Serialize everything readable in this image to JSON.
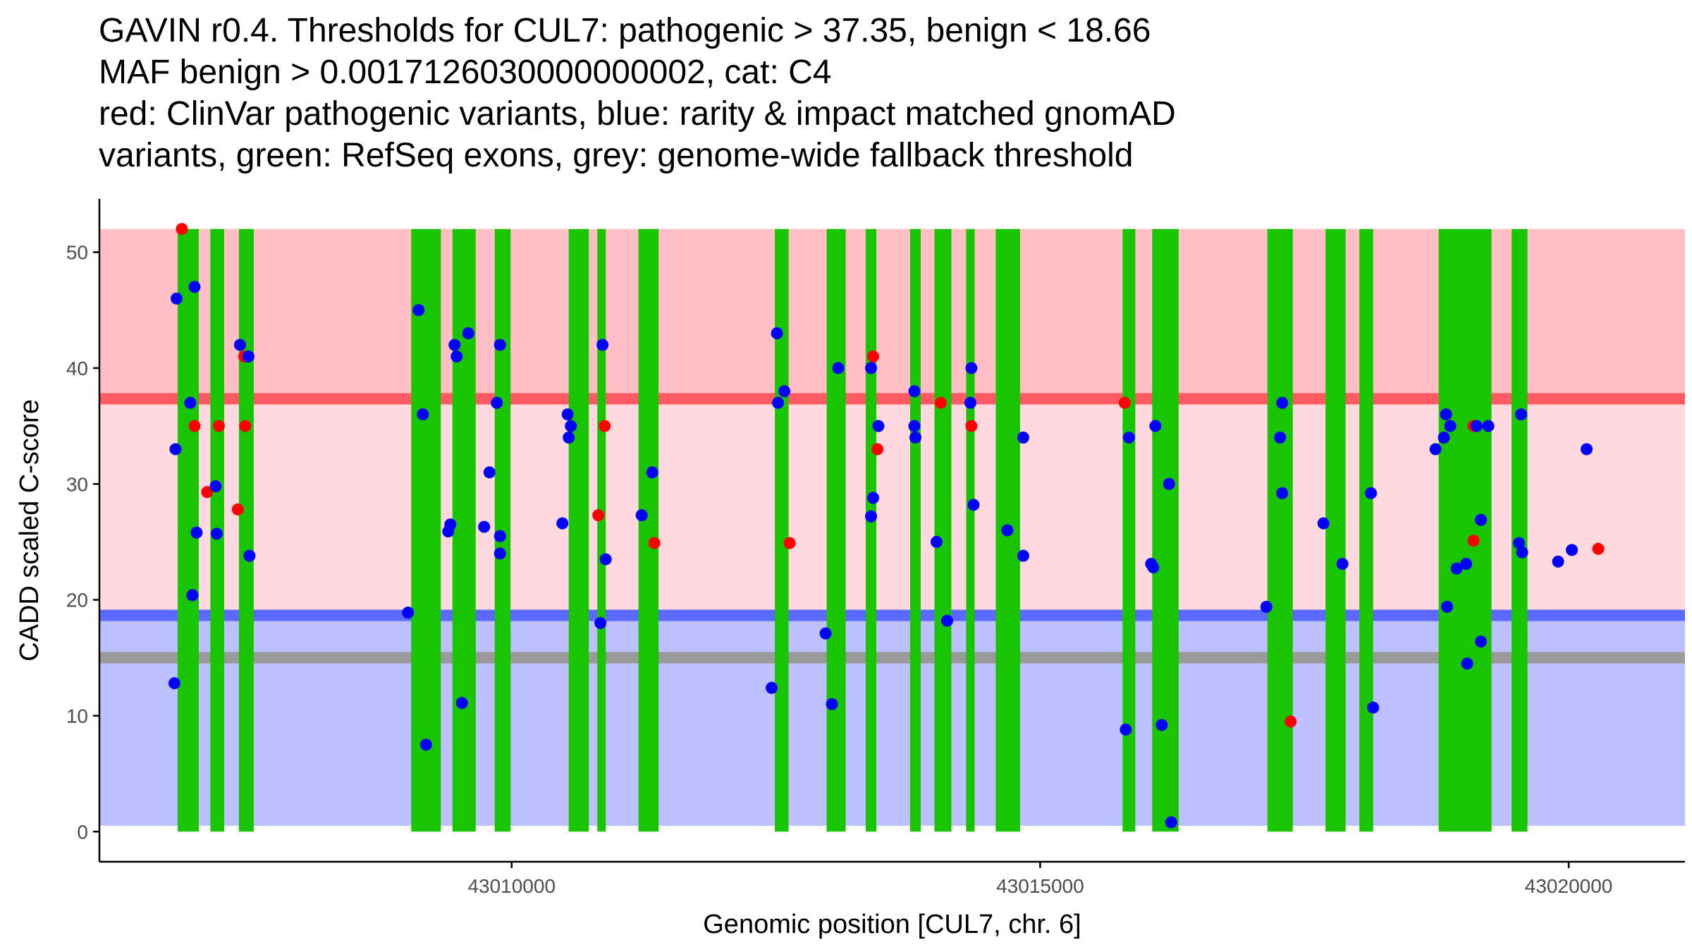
{
  "title_lines": [
    "GAVIN r0.4. Thresholds for CUL7: pathogenic > 37.35, benign < 18.66",
    "MAF benign > 0.0017126030000000002, cat: C4",
    "red: ClinVar pathogenic variants, blue: rarity & impact matched gnomAD",
    "variants, green: RefSeq exons, grey: genome-wide fallback threshold"
  ],
  "chart_data": {
    "type": "scatter",
    "xlabel": "Genomic position [CUL7, chr. 6]",
    "ylabel": "CADD scaled C-score",
    "xlim": [
      43006100,
      43021100
    ],
    "ylim": [
      -2.6,
      54.6
    ],
    "x_ticks": [
      43010000,
      43015000,
      43020000
    ],
    "x_tick_labels": [
      "43010000",
      "43015000",
      "43020000"
    ],
    "y_ticks": [
      0,
      10,
      20,
      30,
      40,
      50
    ],
    "y_tick_labels": [
      "0",
      "10",
      "20",
      "30",
      "40",
      "50"
    ],
    "bands": [
      {
        "name": "pathogenic-zone",
        "from": 37.35,
        "to": 52,
        "color": "#ffbfc5"
      },
      {
        "name": "uncertain-zone",
        "from": 18.66,
        "to": 37.35,
        "color": "#ffd9de"
      },
      {
        "name": "benign-zone",
        "from": 0.5,
        "to": 18.66,
        "color": "#bcc0ff"
      }
    ],
    "thresholds": [
      {
        "name": "pathogenic-threshold",
        "value": 37.35,
        "color": "#ff5a64"
      },
      {
        "name": "benign-threshold",
        "value": 18.66,
        "color": "#5a6aff"
      },
      {
        "name": "fallback-threshold",
        "value": 15,
        "color": "#999999"
      }
    ],
    "exons": [
      [
        43006840,
        43007040
      ],
      [
        43007150,
        43007280
      ],
      [
        43007420,
        43007560
      ],
      [
        43009050,
        43009330
      ],
      [
        43009440,
        43009660
      ],
      [
        43009840,
        43009990
      ],
      [
        43010540,
        43010730
      ],
      [
        43010810,
        43010890
      ],
      [
        43011200,
        43011390
      ],
      [
        43012490,
        43012620
      ],
      [
        43012980,
        43013160
      ],
      [
        43013350,
        43013450
      ],
      [
        43013770,
        43013870
      ],
      [
        43014000,
        43014160
      ],
      [
        43014300,
        43014380
      ],
      [
        43014580,
        43014810
      ],
      [
        43015780,
        43015900
      ],
      [
        43016060,
        43016310
      ],
      [
        43017150,
        43017390
      ],
      [
        43017700,
        43017890
      ],
      [
        43018020,
        43018150
      ],
      [
        43018770,
        43019270
      ],
      [
        43019460,
        43019610
      ]
    ],
    "series": [
      {
        "name": "ClinVar pathogenic variants",
        "color": "#ff0000",
        "points": [
          [
            43006880,
            52
          ],
          [
            43007000,
            35
          ],
          [
            43007230,
            35
          ],
          [
            43007120,
            29.3
          ],
          [
            43007410,
            27.8
          ],
          [
            43007470,
            41
          ],
          [
            43007480,
            35
          ],
          [
            43010820,
            27.3
          ],
          [
            43010880,
            35
          ],
          [
            43011350,
            24.9
          ],
          [
            43012630,
            24.9
          ],
          [
            43013420,
            41
          ],
          [
            43013460,
            33
          ],
          [
            43014060,
            37
          ],
          [
            43014350,
            35
          ],
          [
            43015800,
            37
          ],
          [
            43017370,
            9.5
          ],
          [
            43019100,
            25.1
          ],
          [
            43019100,
            35
          ],
          [
            43020280,
            24.4
          ]
        ]
      },
      {
        "name": "gnomAD matched variants",
        "color": "#0000ff",
        "points": [
          [
            43006810,
            12.8
          ],
          [
            43006820,
            33
          ],
          [
            43006830,
            46
          ],
          [
            43006960,
            37
          ],
          [
            43006980,
            20.4
          ],
          [
            43007000,
            47
          ],
          [
            43007020,
            25.8
          ],
          [
            43007200,
            29.8
          ],
          [
            43007210,
            25.7
          ],
          [
            43007430,
            42
          ],
          [
            43007510,
            41
          ],
          [
            43007520,
            23.8
          ],
          [
            43009020,
            18.9
          ],
          [
            43009120,
            45
          ],
          [
            43009160,
            36
          ],
          [
            43009190,
            7.5
          ],
          [
            43009400,
            25.9
          ],
          [
            43009420,
            26.5
          ],
          [
            43009460,
            42
          ],
          [
            43009480,
            41
          ],
          [
            43009530,
            11.1
          ],
          [
            43009590,
            43
          ],
          [
            43009740,
            26.3
          ],
          [
            43009790,
            31
          ],
          [
            43009860,
            37
          ],
          [
            43009890,
            42
          ],
          [
            43009890,
            25.5
          ],
          [
            43009890,
            24
          ],
          [
            43010480,
            26.6
          ],
          [
            43010530,
            36
          ],
          [
            43010540,
            34
          ],
          [
            43010560,
            35
          ],
          [
            43010840,
            18
          ],
          [
            43010860,
            42
          ],
          [
            43010890,
            23.5
          ],
          [
            43011230,
            27.3
          ],
          [
            43011330,
            31
          ],
          [
            43012460,
            12.4
          ],
          [
            43012510,
            43
          ],
          [
            43012520,
            37
          ],
          [
            43012580,
            38
          ],
          [
            43012970,
            17.1
          ],
          [
            43013030,
            11
          ],
          [
            43013090,
            40
          ],
          [
            43013400,
            40
          ],
          [
            43013400,
            27.2
          ],
          [
            43013420,
            28.8
          ],
          [
            43013470,
            35
          ],
          [
            43013810,
            38
          ],
          [
            43013810,
            35
          ],
          [
            43013820,
            34
          ],
          [
            43014020,
            25
          ],
          [
            43014120,
            18.2
          ],
          [
            43014340,
            37
          ],
          [
            43014350,
            40
          ],
          [
            43014370,
            28.2
          ],
          [
            43014690,
            26
          ],
          [
            43014840,
            23.8
          ],
          [
            43014840,
            34
          ],
          [
            43015810,
            8.8
          ],
          [
            43015840,
            34
          ],
          [
            43016050,
            23.1
          ],
          [
            43016070,
            22.8
          ],
          [
            43016090,
            35
          ],
          [
            43016150,
            9.2
          ],
          [
            43016220,
            30
          ],
          [
            43016240,
            0.8
          ],
          [
            43017140,
            19.4
          ],
          [
            43017290,
            37
          ],
          [
            43017270,
            34
          ],
          [
            43017290,
            29.2
          ],
          [
            43017680,
            26.6
          ],
          [
            43017860,
            23.1
          ],
          [
            43018130,
            29.2
          ],
          [
            43018150,
            10.7
          ],
          [
            43018740,
            33
          ],
          [
            43018820,
            34
          ],
          [
            43018840,
            36
          ],
          [
            43018850,
            19.4
          ],
          [
            43018880,
            35
          ],
          [
            43018940,
            22.7
          ],
          [
            43019030,
            23.1
          ],
          [
            43019040,
            14.5
          ],
          [
            43019130,
            35
          ],
          [
            43019170,
            26.9
          ],
          [
            43019170,
            16.4
          ],
          [
            43019240,
            35
          ],
          [
            43019530,
            24.9
          ],
          [
            43019550,
            36
          ],
          [
            43019560,
            24.1
          ],
          [
            43019900,
            23.3
          ],
          [
            43020030,
            24.3
          ],
          [
            43020170,
            33
          ]
        ]
      }
    ]
  }
}
